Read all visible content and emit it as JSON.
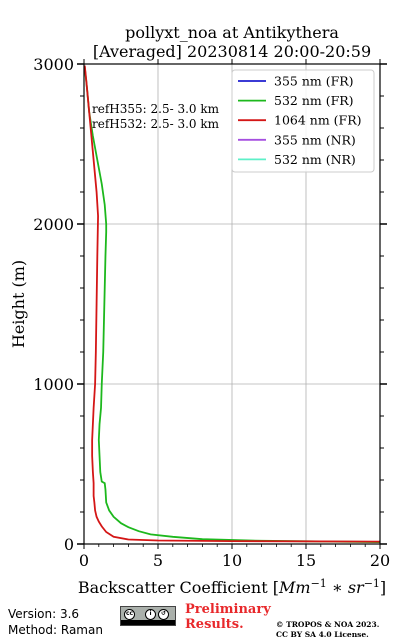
{
  "chart_data": {
    "type": "line",
    "title_line1": "pollyxt_noa at Antikythera",
    "title_line2": "[Averaged] 20230814 20:00-20:59",
    "xlabel_prefix": "Backscatter Coefficient [",
    "xlabel_unit": "Mm",
    "xlabel_exp1": "−1",
    "xlabel_mid": " ∗ ",
    "xlabel_unit2": "sr",
    "xlabel_exp2": "−1",
    "xlabel_suffix": "]",
    "ylabel": "Height (m)",
    "xlim": [
      0,
      20
    ],
    "ylim": [
      0,
      3000
    ],
    "xticks": [
      0,
      5,
      10,
      15,
      20
    ],
    "yticks": [
      0,
      1000,
      2000,
      3000
    ],
    "grid": true,
    "legend_position": "top-right",
    "ref_lines": [
      "refH355:  2.5- 3.0 km",
      "refH532:  2.5- 3.0 km"
    ],
    "series": [
      {
        "name": "355 nm (FR)",
        "color": "#1f1fcf",
        "points": []
      },
      {
        "name": "532 nm (FR)",
        "color": "#1db81d",
        "points": [
          [
            20,
            12
          ],
          [
            12,
            20
          ],
          [
            8,
            30
          ],
          [
            6,
            45
          ],
          [
            4.5,
            60
          ],
          [
            3.7,
            80
          ],
          [
            3,
            105
          ],
          [
            2.5,
            130
          ],
          [
            2,
            170
          ],
          [
            1.7,
            210
          ],
          [
            1.5,
            260
          ],
          [
            1.45,
            340
          ],
          [
            1.4,
            380
          ],
          [
            1.2,
            390
          ],
          [
            1.1,
            450
          ],
          [
            1.05,
            550
          ],
          [
            1.0,
            650
          ],
          [
            1.05,
            750
          ],
          [
            1.15,
            850
          ],
          [
            1.2,
            1000
          ],
          [
            1.3,
            1200
          ],
          [
            1.35,
            1400
          ],
          [
            1.4,
            1600
          ],
          [
            1.45,
            1800
          ],
          [
            1.5,
            1950
          ],
          [
            1.5,
            2000
          ],
          [
            1.4,
            2120
          ],
          [
            1.2,
            2250
          ],
          [
            0.9,
            2400
          ],
          [
            0.6,
            2550
          ],
          [
            0.35,
            2700
          ],
          [
            0.2,
            2850
          ],
          [
            0.05,
            2980
          ]
        ]
      },
      {
        "name": "1064 nm (FR)",
        "color": "#d41616",
        "points": [
          [
            20,
            15
          ],
          [
            10,
            18
          ],
          [
            5,
            22
          ],
          [
            3,
            28
          ],
          [
            2,
            45
          ],
          [
            1.5,
            75
          ],
          [
            1.2,
            110
          ],
          [
            1.0,
            140
          ],
          [
            0.85,
            170
          ],
          [
            0.75,
            210
          ],
          [
            0.7,
            260
          ],
          [
            0.65,
            300
          ],
          [
            0.65,
            380
          ],
          [
            0.6,
            450
          ],
          [
            0.55,
            550
          ],
          [
            0.55,
            650
          ],
          [
            0.6,
            750
          ],
          [
            0.65,
            850
          ],
          [
            0.75,
            1000
          ],
          [
            0.8,
            1200
          ],
          [
            0.85,
            1500
          ],
          [
            0.9,
            1800
          ],
          [
            0.95,
            2050
          ],
          [
            0.85,
            2200
          ],
          [
            0.7,
            2350
          ],
          [
            0.55,
            2500
          ],
          [
            0.4,
            2650
          ],
          [
            0.25,
            2800
          ],
          [
            0.15,
            2900
          ],
          [
            0.05,
            2990
          ]
        ]
      },
      {
        "name": "355 nm (NR)",
        "color": "#a54fe0",
        "points": []
      },
      {
        "name": "532 nm (NR)",
        "color": "#5ef0c8",
        "points": []
      }
    ]
  },
  "footer": {
    "version": "Version: 3.6",
    "method": "Method: Raman",
    "preliminary_line1": "Preliminary",
    "preliminary_line2": "Results.",
    "copyright_line1": "© TROPOS & NOA 2023.",
    "copyright_line2": "CC BY SA 4.0 License."
  }
}
